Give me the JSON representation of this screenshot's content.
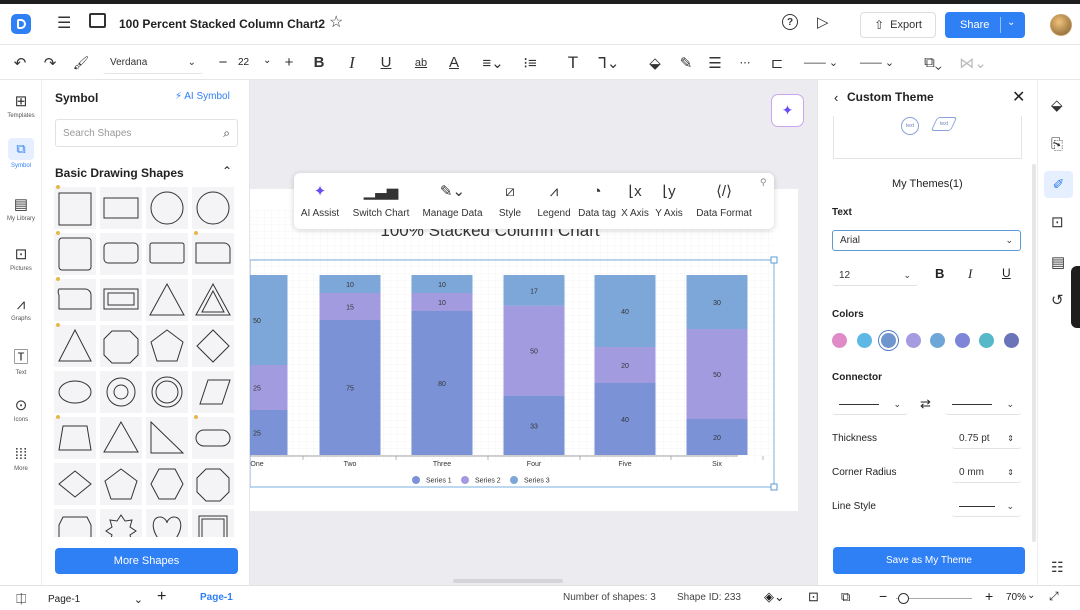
{
  "top": {
    "doc_title": "100 Percent Stacked Column Chart2",
    "export_label": "Export",
    "share_label": "Share"
  },
  "toolbar": {
    "font": "Verdana",
    "font_size": "22"
  },
  "rail": {
    "items": [
      "Templates",
      "Symbol",
      "My Library",
      "Pictures",
      "Graphs",
      "Text",
      "Icons",
      "More"
    ]
  },
  "symbol": {
    "title": "Symbol",
    "ai_symbol": "AI Symbol",
    "search_placeholder": "Search Shapes",
    "section": "Basic Drawing Shapes",
    "more_shapes": "More Shapes"
  },
  "context_menu": {
    "items": [
      "AI Assist",
      "Switch Chart",
      "Manage Data",
      "Style",
      "Legend",
      "Data tag",
      "X Axis",
      "Y Axis",
      "Data Format"
    ]
  },
  "chart_data": {
    "type": "bar",
    "stacked": true,
    "percent": true,
    "title": "100% Stacked Column Chart",
    "categories": [
      "One",
      "Two",
      "Three",
      "Four",
      "Five",
      "Six"
    ],
    "series": [
      {
        "name": "Series 1",
        "color": "#7b93d6",
        "values": [
          25,
          75,
          80,
          33,
          40,
          20
        ]
      },
      {
        "name": "Series 2",
        "color": "#a39be0",
        "values": [
          25,
          15,
          10,
          50,
          20,
          50
        ]
      },
      {
        "name": "Series 3",
        "color": "#7da7d9",
        "values": [
          50,
          10,
          10,
          17,
          40,
          30
        ]
      }
    ],
    "grid": true,
    "legend": "bottom"
  },
  "right_panel": {
    "title": "Custom Theme",
    "theme_shape_1": "text",
    "theme_shape_2": "text",
    "my_themes": "My Themes(1)",
    "text_label": "Text",
    "font": "Arial",
    "size": "12",
    "colors_label": "Colors",
    "colors": [
      "#e08ac8",
      "#5db8e6",
      "#6f95cf",
      "#a49be0",
      "#6fa6d8",
      "#7f86d8",
      "#57b8c8",
      "#6b74b8"
    ],
    "connector_label": "Connector",
    "thickness_label": "Thickness",
    "thickness_value": "0.75 pt",
    "corner_label": "Corner Radius",
    "corner_value": "0 mm",
    "line_style_label": "Line Style",
    "save_button": "Save as My Theme"
  },
  "status": {
    "page_select": "Page-1",
    "page_tab": "Page-1",
    "shapes": "Number of shapes: 3",
    "shape_id": "Shape ID: 233",
    "zoom": "70%"
  }
}
